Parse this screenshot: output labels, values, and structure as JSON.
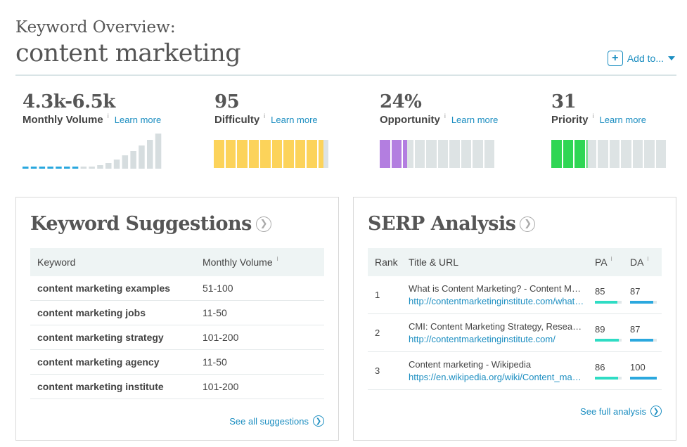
{
  "header": {
    "subtitle": "Keyword Overview:",
    "title": "content marketing",
    "add_to_label": "Add to..."
  },
  "metrics": [
    {
      "value": "4.3k-6.5k",
      "label": "Monthly Volume",
      "learn": "Learn more"
    },
    {
      "value": "95",
      "label": "Difficulty",
      "learn": "Learn more",
      "score": 95,
      "color": "#fcd35a"
    },
    {
      "value": "24%",
      "label": "Opportunity",
      "learn": "Learn more",
      "score": 24,
      "color": "#b37ee0"
    },
    {
      "value": "31",
      "label": "Priority",
      "learn": "Learn more",
      "score": 31,
      "color": "#2fd654"
    }
  ],
  "info_glyph": "i",
  "colors": {
    "accent": "#1c8ec1",
    "pa": "#2fdcc4",
    "da": "#2ba8de",
    "spark_low": "#29a7de",
    "spark_high": "#d6dddf"
  },
  "suggestions": {
    "title": "Keyword Suggestions",
    "col_keyword": "Keyword",
    "col_volume": "Monthly Volume",
    "rows": [
      {
        "keyword": "content marketing examples",
        "volume": "51-100"
      },
      {
        "keyword": "content marketing jobs",
        "volume": "11-50"
      },
      {
        "keyword": "content marketing strategy",
        "volume": "101-200"
      },
      {
        "keyword": "content marketing agency",
        "volume": "11-50"
      },
      {
        "keyword": "content marketing institute",
        "volume": "101-200"
      }
    ],
    "see_all": "See all suggestions"
  },
  "serp": {
    "title": "SERP Analysis",
    "col_rank": "Rank",
    "col_title": "Title & URL",
    "col_pa": "PA",
    "col_da": "DA",
    "rows": [
      {
        "rank": "1",
        "title": "What is Content Marketing? - Content Marketing Institute",
        "url": "http://contentmarketinginstitute.com/what-is-content-marketing/",
        "pa": 85,
        "da": 87
      },
      {
        "rank": "2",
        "title": "CMI: Content Marketing Strategy, Research, News",
        "url": "http://contentmarketinginstitute.com/",
        "pa": 89,
        "da": 87
      },
      {
        "rank": "3",
        "title": "Content marketing - Wikipedia",
        "url": "https://en.wikipedia.org/wiki/Content_marketing",
        "pa": 86,
        "da": 100
      }
    ],
    "see_full": "See full analysis"
  }
}
